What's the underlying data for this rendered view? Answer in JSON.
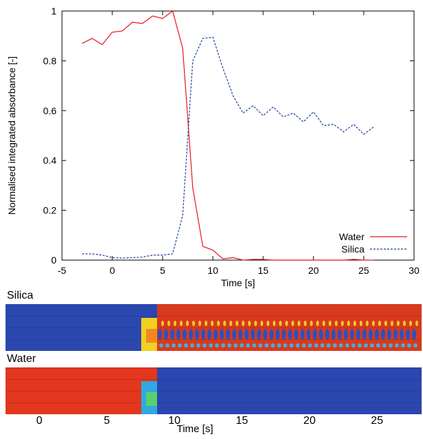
{
  "chart_data": [
    {
      "type": "line",
      "xlabel": "Time [s]",
      "ylabel": "Normalised integrated absorbance [-]",
      "x": [
        -3,
        -2,
        -1,
        0,
        1,
        2,
        3,
        4,
        5,
        6,
        7,
        8,
        9,
        10,
        11,
        12,
        13,
        14,
        15,
        16,
        17,
        18,
        19,
        20,
        21,
        22,
        23,
        24,
        25,
        26
      ],
      "series": [
        {
          "name": "Water",
          "color": "#e8141c",
          "dash": "solid",
          "values": [
            0.87,
            0.89,
            0.865,
            0.915,
            0.92,
            0.955,
            0.95,
            0.98,
            0.97,
            1.0,
            0.85,
            0.29,
            0.055,
            0.04,
            0.005,
            0.01,
            0,
            0.003,
            0.003,
            0,
            0,
            0,
            0,
            0,
            0,
            0,
            0,
            0.003,
            0,
            0
          ]
        },
        {
          "name": "Silica",
          "color": "#1a3c9e",
          "dash": "dashed",
          "values": [
            0.025,
            0.025,
            0.02,
            0.01,
            0.008,
            0.01,
            0.012,
            0.02,
            0.02,
            0.025,
            0.18,
            0.8,
            0.89,
            0.895,
            0.77,
            0.66,
            0.59,
            0.62,
            0.58,
            0.615,
            0.575,
            0.59,
            0.555,
            0.595,
            0.54,
            0.545,
            0.515,
            0.545,
            0.505,
            0.535
          ]
        }
      ],
      "xlim": [
        -5,
        30
      ],
      "xticks": [
        -5,
        0,
        5,
        10,
        15,
        20,
        25,
        30
      ],
      "ylim": [
        0,
        1
      ],
      "yticks": [
        0,
        0.2,
        0.4,
        0.6,
        0.8,
        1
      ],
      "legend": "lower right"
    },
    {
      "type": "heatmap-strips",
      "panels": [
        {
          "label": "Silica"
        },
        {
          "label": "Water"
        }
      ],
      "xlabel": "Time [s]",
      "xlim": [
        -2.5,
        28.3
      ],
      "xticks": [
        0,
        5,
        10,
        15,
        20,
        25
      ]
    }
  ]
}
